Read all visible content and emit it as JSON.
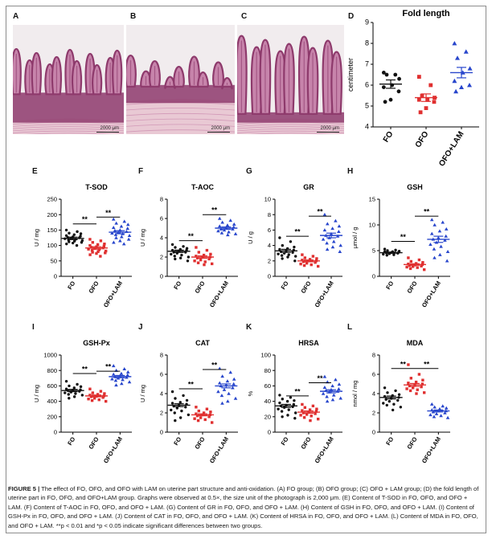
{
  "panel_labels": {
    "A": "A",
    "B": "B",
    "C": "C",
    "D": "D",
    "E": "E",
    "F": "F",
    "G": "G",
    "H": "H",
    "I": "I",
    "J": "J",
    "K": "K",
    "L": "L"
  },
  "scale_bar_text": "2000 μm",
  "colors": {
    "fo": "#111111",
    "ofo": "#e03030",
    "lam": "#2846cc",
    "tissue_bg": "#f1ecee",
    "tissue_dark": "#8e3a6c",
    "tissue_light": "#c784ab",
    "muscle": "#e9c9d4"
  },
  "caption": {
    "heading": "FIGURE 5 |",
    "text": "The effect of FO, OFO, and OFO with LAM on uterine part structure and anti-oxidation. (A) FO group; (B) OFO group; (C) OFO + LAM group; (D) the fold length of uterine part in FO, OFO, and OFO+LAM group. Graphs were observed at 0.5×, the size unit of the photograph is 2,000 μm. (E) Content of T-SOD in FO, OFO, and OFO + LAM. (F) Content of T-AOC in FO, OFO, and OFO + LAM. (G) Content of GR in FO, OFO, and OFO + LAM. (H) Content of GSH in FO, OFO, and OFO + LAM. (I) Content of GSH-Px in FO, OFO, and OFO + LAM. (J) Content of CAT in FO, OFO, and OFO + LAM. (K) Content of HRSA in FO, OFO, and OFO + LAM. (L) Content of MDA in FO, OFO, and OFO + LAM. **p < 0.01 and *p < 0.05 indicate significant differences between two groups."
  },
  "chart_data": [
    {
      "id": "D",
      "type": "scatter",
      "title": "Fold length",
      "ylabel": "centimeter",
      "xlabel": "",
      "categories": [
        "FO",
        "OFO",
        "OFO+LAM"
      ],
      "ylim": [
        4,
        9
      ],
      "yticks": [
        4,
        5,
        6,
        7,
        8,
        9
      ],
      "means": [
        6.05,
        5.4,
        6.6
      ],
      "sem": [
        0.2,
        0.18,
        0.25
      ],
      "points": [
        [
          6.6,
          6.5,
          6.5,
          6.3,
          6.0,
          5.9,
          5.7,
          5.3,
          5.2
        ],
        [
          6.4,
          6.0,
          5.5,
          5.4,
          5.3,
          5.3,
          5.2,
          4.9,
          4.7
        ],
        [
          8.0,
          7.6,
          7.3,
          6.8,
          6.6,
          6.2,
          6.0,
          5.9,
          5.7
        ]
      ],
      "significance": []
    },
    {
      "id": "E",
      "type": "scatter",
      "title": "T-SOD",
      "ylabel": "U / mg",
      "xlabel": "",
      "categories": [
        "FO",
        "OFO",
        "OFO+LAM"
      ],
      "ylim": [
        0,
        250
      ],
      "yticks": [
        0,
        50,
        100,
        150,
        200,
        250
      ],
      "means": [
        123,
        92,
        143
      ],
      "sem": [
        4,
        4,
        5
      ],
      "points": [
        [
          150,
          145,
          140,
          138,
          135,
          132,
          130,
          128,
          126,
          125,
          124,
          122,
          120,
          118,
          116,
          114,
          112,
          110,
          108,
          105,
          100
        ],
        [
          120,
          115,
          110,
          105,
          103,
          100,
          98,
          96,
          94,
          92,
          90,
          88,
          86,
          84,
          82,
          80,
          78,
          76,
          74,
          70,
          65
        ],
        [
          185,
          178,
          172,
          168,
          162,
          158,
          155,
          150,
          148,
          145,
          142,
          140,
          138,
          135,
          132,
          128,
          125,
          120,
          115,
          110,
          105
        ]
      ],
      "significance": [
        {
          "from": 0,
          "to": 1,
          "level": 170,
          "label": "**"
        },
        {
          "from": 1,
          "to": 2,
          "level": 192,
          "label": "**"
        }
      ]
    },
    {
      "id": "F",
      "type": "scatter",
      "title": "T-AOC",
      "ylabel": "U / mg",
      "xlabel": "",
      "categories": [
        "FO",
        "OFO",
        "OFO+LAM"
      ],
      "ylim": [
        0,
        8
      ],
      "yticks": [
        0,
        2,
        4,
        6,
        8
      ],
      "means": [
        2.6,
        2.0,
        5.0
      ],
      "sem": [
        0.12,
        0.12,
        0.12
      ],
      "points": [
        [
          3.3,
          3.1,
          3.0,
          2.9,
          2.8,
          2.7,
          2.7,
          2.6,
          2.5,
          2.5,
          2.4,
          2.3,
          2.2,
          2.1,
          2.0,
          1.9,
          1.8,
          1.6
        ],
        [
          3.0,
          2.7,
          2.5,
          2.3,
          2.2,
          2.1,
          2.0,
          2.0,
          1.9,
          1.8,
          1.7,
          1.6,
          1.5,
          1.4,
          1.3,
          1.2
        ],
        [
          6.0,
          5.8,
          5.6,
          5.4,
          5.3,
          5.2,
          5.1,
          5.0,
          4.9,
          4.9,
          4.8,
          4.7,
          4.6,
          4.5,
          4.4,
          4.3
        ]
      ],
      "significance": [
        {
          "from": 0,
          "to": 1,
          "level": 3.7,
          "label": "**"
        },
        {
          "from": 1,
          "to": 2,
          "level": 6.4,
          "label": "**"
        }
      ]
    },
    {
      "id": "G",
      "type": "scatter",
      "title": "GR",
      "ylabel": "U / g",
      "xlabel": "",
      "categories": [
        "FO",
        "OFO",
        "OFO+LAM"
      ],
      "ylim": [
        0,
        10
      ],
      "yticks": [
        0,
        2,
        4,
        6,
        8,
        10
      ],
      "means": [
        3.3,
        2.0,
        5.3
      ],
      "sem": [
        0.2,
        0.12,
        0.3
      ],
      "points": [
        [
          5.0,
          4.5,
          4.0,
          3.8,
          3.6,
          3.5,
          3.4,
          3.3,
          3.2,
          3.1,
          3.0,
          2.9,
          2.8,
          2.7,
          2.6,
          2.5,
          2.3,
          2.0
        ],
        [
          2.8,
          2.6,
          2.4,
          2.3,
          2.2,
          2.1,
          2.0,
          2.0,
          1.9,
          1.8,
          1.7,
          1.6,
          1.5,
          1.4,
          1.3
        ],
        [
          8.0,
          7.2,
          6.8,
          6.5,
          6.2,
          6.0,
          5.8,
          5.5,
          5.3,
          5.2,
          5.0,
          4.8,
          4.5,
          4.3,
          4.0,
          3.8,
          3.5,
          3.2
        ]
      ],
      "significance": [
        {
          "from": 0,
          "to": 1,
          "level": 5.2,
          "label": "**"
        },
        {
          "from": 1,
          "to": 2,
          "level": 7.8,
          "label": "**"
        }
      ]
    },
    {
      "id": "H",
      "type": "scatter",
      "title": "GSH",
      "ylabel": "μmol / g",
      "xlabel": "",
      "categories": [
        "FO",
        "OFO",
        "OFO+LAM"
      ],
      "ylim": [
        0,
        15
      ],
      "yticks": [
        0,
        5,
        10,
        15
      ],
      "means": [
        4.6,
        2.3,
        7.2
      ],
      "sem": [
        0.12,
        0.15,
        0.6
      ],
      "points": [
        [
          5.3,
          5.1,
          5.0,
          4.9,
          4.8,
          4.8,
          4.7,
          4.6,
          4.6,
          4.5,
          4.4,
          4.3,
          4.2,
          4.1
        ],
        [
          3.6,
          3.2,
          2.9,
          2.7,
          2.5,
          2.4,
          2.3,
          2.2,
          2.1,
          2.0,
          1.9,
          1.8,
          1.7,
          1.5,
          1.3
        ],
        [
          11.0,
          10.5,
          10.0,
          9.2,
          8.8,
          8.3,
          7.8,
          7.5,
          7.2,
          7.0,
          6.6,
          6.2,
          5.8,
          5.3,
          4.8,
          4.2,
          3.6,
          3.0
        ]
      ],
      "significance": [
        {
          "from": 0,
          "to": 1,
          "level": 6.8,
          "label": "**"
        },
        {
          "from": 1,
          "to": 2,
          "level": 11.7,
          "label": "**"
        }
      ]
    },
    {
      "id": "I",
      "type": "scatter",
      "title": "GSH-Px",
      "ylabel": "U / mg",
      "xlabel": "",
      "categories": [
        "FO",
        "OFO",
        "OFO+LAM"
      ],
      "ylim": [
        0,
        1000
      ],
      "yticks": [
        0,
        200,
        400,
        600,
        800,
        1000
      ],
      "means": [
        540,
        470,
        720
      ],
      "sem": [
        15,
        12,
        15
      ],
      "points": [
        [
          660,
          620,
          600,
          590,
          575,
          560,
          550,
          545,
          540,
          530,
          520,
          510,
          500,
          490,
          480,
          460,
          440
        ],
        [
          560,
          530,
          510,
          500,
          490,
          480,
          470,
          465,
          460,
          450,
          440,
          430,
          420,
          410,
          400
        ],
        [
          860,
          820,
          800,
          780,
          760,
          750,
          740,
          730,
          720,
          710,
          700,
          690,
          680,
          670,
          650,
          630,
          610
        ]
      ],
      "significance": [
        {
          "from": 0,
          "to": 1,
          "level": 760,
          "label": "**"
        },
        {
          "from": 1,
          "to": 2,
          "level": 790,
          "label": "**"
        }
      ]
    },
    {
      "id": "J",
      "type": "scatter",
      "title": "CAT",
      "ylabel": "U / mg",
      "xlabel": "",
      "categories": [
        "FO",
        "OFO",
        "OFO+LAM"
      ],
      "ylim": [
        0,
        8
      ],
      "yticks": [
        0,
        2,
        4,
        6,
        8
      ],
      "means": [
        2.8,
        1.8,
        4.8
      ],
      "sem": [
        0.15,
        0.1,
        0.2
      ],
      "points": [
        [
          4.2,
          3.8,
          3.5,
          3.3,
          3.1,
          3.0,
          2.9,
          2.8,
          2.7,
          2.6,
          2.5,
          2.3,
          2.2,
          2.0,
          1.8,
          1.5,
          1.2
        ],
        [
          2.6,
          2.4,
          2.2,
          2.1,
          2.0,
          1.9,
          1.8,
          1.8,
          1.7,
          1.6,
          1.5,
          1.4,
          1.3,
          1.2,
          1.0
        ],
        [
          6.6,
          6.2,
          5.8,
          5.5,
          5.3,
          5.1,
          5.0,
          4.9,
          4.8,
          4.6,
          4.4,
          4.2,
          4.0,
          3.8,
          3.5,
          3.2,
          3.0
        ]
      ],
      "significance": [
        {
          "from": 0,
          "to": 1,
          "level": 4.5,
          "label": "**"
        },
        {
          "from": 1,
          "to": 2,
          "level": 6.5,
          "label": "**"
        }
      ]
    },
    {
      "id": "K",
      "type": "scatter",
      "title": "HRSA",
      "ylabel": "%",
      "xlabel": "",
      "categories": [
        "FO",
        "OFO",
        "OFO+LAM"
      ],
      "ylim": [
        0,
        100
      ],
      "yticks": [
        0,
        20,
        40,
        60,
        80,
        100
      ],
      "means": [
        34,
        26,
        53
      ],
      "sem": [
        2,
        1.5,
        2
      ],
      "points": [
        [
          48,
          45,
          43,
          41,
          40,
          38,
          36,
          35,
          34,
          33,
          32,
          30,
          29,
          27,
          25,
          22,
          20,
          18
        ],
        [
          36,
          34,
          32,
          30,
          29,
          28,
          27,
          26,
          25,
          24,
          23,
          22,
          21,
          19,
          17,
          15
        ],
        [
          72,
          68,
          65,
          62,
          60,
          58,
          56,
          55,
          54,
          53,
          52,
          50,
          48,
          46,
          44,
          42,
          40
        ]
      ],
      "significance": [
        {
          "from": 0,
          "to": 1,
          "level": 47,
          "label": "**"
        },
        {
          "from": 1,
          "to": 2,
          "level": 64,
          "label": "**"
        }
      ]
    },
    {
      "id": "L",
      "type": "scatter",
      "title": "MDA",
      "ylabel": "nmol / mg",
      "xlabel": "",
      "categories": [
        "FO",
        "OFO",
        "OFO+LAM"
      ],
      "ylim": [
        0,
        8
      ],
      "yticks": [
        0,
        2,
        4,
        6,
        8
      ],
      "means": [
        3.6,
        4.9,
        2.2
      ],
      "sem": [
        0.15,
        0.15,
        0.1
      ],
      "points": [
        [
          4.6,
          4.3,
          4.1,
          3.9,
          3.8,
          3.7,
          3.6,
          3.5,
          3.4,
          3.3,
          3.2,
          3.0,
          2.9,
          2.8,
          2.6,
          2.3
        ],
        [
          7.0,
          6.0,
          5.6,
          5.4,
          5.2,
          5.1,
          5.0,
          4.9,
          4.8,
          4.7,
          4.6,
          4.5,
          4.4,
          4.3,
          4.1,
          4.0
        ],
        [
          2.9,
          2.7,
          2.6,
          2.5,
          2.4,
          2.3,
          2.2,
          2.2,
          2.1,
          2.0,
          1.9,
          1.8,
          1.7,
          1.6,
          1.5
        ]
      ],
      "significance": [
        {
          "from": 0,
          "to": 1,
          "level": 6.6,
          "label": "**"
        },
        {
          "from": 1,
          "to": 2,
          "level": 6.6,
          "label": "**"
        }
      ]
    }
  ]
}
